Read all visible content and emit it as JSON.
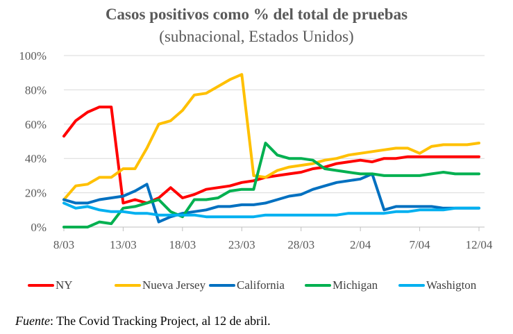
{
  "chart_data": {
    "type": "line",
    "title": "Casos positivos como % del total de pruebas",
    "subtitle": "(subnacional, Estados Unidos)",
    "xlabel": "",
    "ylabel": "",
    "x_ticks": [
      "8/03",
      "13/03",
      "18/03",
      "23/03",
      "28/03",
      "2/04",
      "7/04",
      "12/04"
    ],
    "y_ticks": [
      "0%",
      "20%",
      "40%",
      "60%",
      "80%",
      "100%"
    ],
    "ylim": [
      0,
      100
    ],
    "grid": "horizontal",
    "legend_position": "bottom",
    "series": [
      {
        "name": "NY",
        "color": "#ff0000",
        "x": [
          "8/03",
          "9/03",
          "10/03",
          "11/03",
          "12/03",
          "13/03",
          "14/03",
          "15/03",
          "16/03",
          "17/03",
          "18/03",
          "19/03",
          "20/03",
          "21/03",
          "22/03",
          "23/03",
          "24/03",
          "25/03",
          "26/03",
          "27/03",
          "28/03",
          "29/03",
          "30/03",
          "31/03",
          "1/04",
          "2/04",
          "3/04",
          "4/04",
          "5/04",
          "6/04",
          "7/04",
          "8/04",
          "9/04",
          "10/04",
          "11/04",
          "12/04"
        ],
        "values": [
          53,
          62,
          67,
          70,
          70,
          14,
          16,
          14,
          17,
          23,
          17,
          19,
          22,
          23,
          24,
          26,
          27,
          29,
          30,
          31,
          32,
          34,
          35,
          37,
          38,
          39,
          38,
          40,
          40,
          41,
          41,
          41,
          41,
          41,
          41,
          41
        ]
      },
      {
        "name": "Nueva Jersey",
        "color": "#ffc000",
        "x": [
          "8/03",
          "9/03",
          "10/03",
          "11/03",
          "12/03",
          "13/03",
          "14/03",
          "15/03",
          "16/03",
          "17/03",
          "18/03",
          "19/03",
          "20/03",
          "21/03",
          "22/03",
          "23/03",
          "24/03",
          "25/03",
          "26/03",
          "27/03",
          "28/03",
          "29/03",
          "30/03",
          "31/03",
          "1/04",
          "2/04",
          "3/04",
          "4/04",
          "5/04",
          "6/04",
          "7/04",
          "8/04",
          "9/04",
          "10/04",
          "11/04",
          "12/04"
        ],
        "values": [
          16,
          24,
          25,
          29,
          29,
          34,
          34,
          46,
          60,
          62,
          68,
          77,
          78,
          82,
          86,
          89,
          30,
          29,
          33,
          35,
          36,
          37,
          39,
          40,
          42,
          43,
          44,
          45,
          46,
          46,
          43,
          47,
          48,
          48,
          48,
          49
        ]
      },
      {
        "name": "California",
        "color": "#0070c0",
        "x": [
          "8/03",
          "9/03",
          "10/03",
          "11/03",
          "12/03",
          "13/03",
          "14/03",
          "15/03",
          "16/03",
          "17/03",
          "18/03",
          "19/03",
          "20/03",
          "21/03",
          "22/03",
          "23/03",
          "24/03",
          "25/03",
          "26/03",
          "27/03",
          "28/03",
          "29/03",
          "30/03",
          "31/03",
          "1/04",
          "2/04",
          "3/04",
          "4/04",
          "5/04",
          "6/04",
          "7/04",
          "8/04",
          "9/04",
          "10/04",
          "11/04",
          "12/04"
        ],
        "values": [
          16,
          14,
          14,
          16,
          17,
          18,
          21,
          25,
          3,
          6,
          8,
          9,
          10,
          12,
          12,
          13,
          13,
          14,
          16,
          18,
          19,
          22,
          24,
          26,
          27,
          28,
          31,
          10,
          12,
          12,
          12,
          12,
          11,
          11,
          11,
          11
        ]
      },
      {
        "name": "Michigan",
        "color": "#00b050",
        "x": [
          "8/03",
          "9/03",
          "10/03",
          "11/03",
          "12/03",
          "13/03",
          "14/03",
          "15/03",
          "16/03",
          "17/03",
          "18/03",
          "19/03",
          "20/03",
          "21/03",
          "22/03",
          "23/03",
          "24/03",
          "25/03",
          "26/03",
          "27/03",
          "28/03",
          "29/03",
          "30/03",
          "31/03",
          "1/04",
          "2/04",
          "3/04",
          "4/04",
          "5/04",
          "6/04",
          "7/04",
          "8/04",
          "9/04",
          "10/04",
          "11/04",
          "12/04"
        ],
        "values": [
          0,
          0,
          0,
          3,
          2,
          11,
          12,
          14,
          16,
          9,
          6,
          16,
          16,
          17,
          21,
          22,
          22,
          49,
          42,
          40,
          40,
          39,
          34,
          33,
          32,
          31,
          31,
          30,
          30,
          30,
          30,
          31,
          32,
          31,
          31,
          31
        ]
      },
      {
        "name": "Washigton",
        "color": "#00b0f0",
        "x": [
          "8/03",
          "9/03",
          "10/03",
          "11/03",
          "12/03",
          "13/03",
          "14/03",
          "15/03",
          "16/03",
          "17/03",
          "18/03",
          "19/03",
          "20/03",
          "21/03",
          "22/03",
          "23/03",
          "24/03",
          "25/03",
          "26/03",
          "27/03",
          "28/03",
          "29/03",
          "30/03",
          "31/03",
          "1/04",
          "2/04",
          "3/04",
          "4/04",
          "5/04",
          "6/04",
          "7/04",
          "8/04",
          "9/04",
          "10/04",
          "11/04",
          "12/04"
        ],
        "values": [
          14,
          11,
          12,
          10,
          9,
          9,
          8,
          8,
          7,
          7,
          7,
          7,
          6,
          6,
          6,
          6,
          6,
          7,
          7,
          7,
          7,
          7,
          7,
          7,
          8,
          8,
          8,
          8,
          9,
          9,
          10,
          10,
          10,
          11,
          11,
          11
        ]
      }
    ]
  },
  "source": {
    "label": "Fuente",
    "text": ": The Covid Tracking Project, al 12 de abril."
  }
}
